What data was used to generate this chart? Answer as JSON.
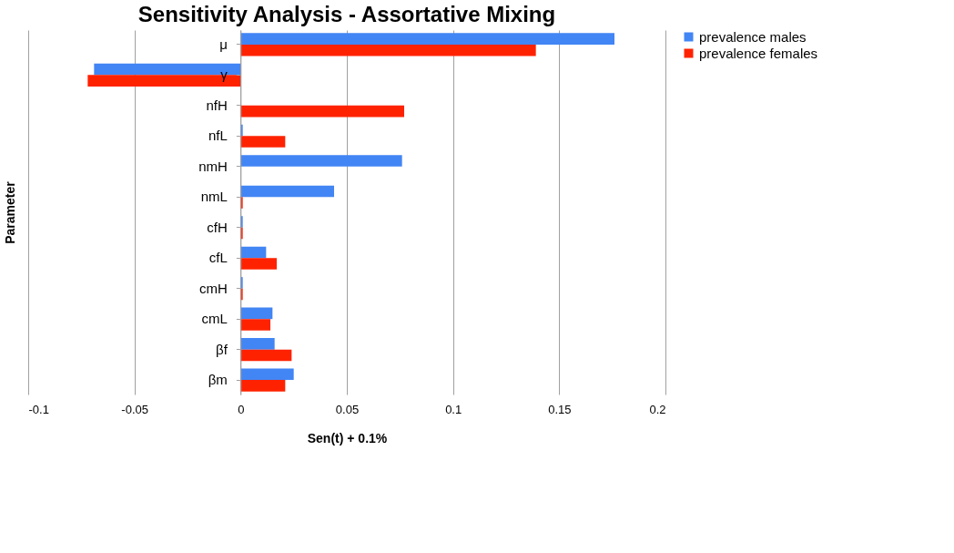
{
  "chart_data": {
    "type": "bar",
    "orientation": "horizontal",
    "title": "Sensitivity Analysis - Assortative Mixing",
    "xlabel": "Sen(t) + 0.1%",
    "ylabel": "Parameter",
    "categories": [
      "μ",
      "γ",
      "nfH",
      "nfL",
      "nmH",
      "nmL",
      "cfH",
      "cfL",
      "cmH",
      "cmL",
      "βf",
      "βm"
    ],
    "series": [
      {
        "name": "prevalence males",
        "color": "#4285f4",
        "values": [
          0.176,
          -0.069,
          0,
          0.001,
          0.076,
          0.044,
          0.001,
          0.012,
          0.001,
          0.015,
          0.016,
          0.025
        ]
      },
      {
        "name": "prevalence females",
        "color": "#ff2200",
        "values": [
          0.139,
          -0.072,
          0.077,
          0.021,
          0,
          0.001,
          0.001,
          0.017,
          0.001,
          0.014,
          0.024,
          0.021
        ]
      }
    ],
    "xlim": [
      -0.1,
      0.2
    ],
    "xticks": [
      -0.1,
      -0.05,
      0,
      0.05,
      0.1,
      0.15,
      0.2
    ],
    "grid": "x",
    "legend": "right"
  }
}
